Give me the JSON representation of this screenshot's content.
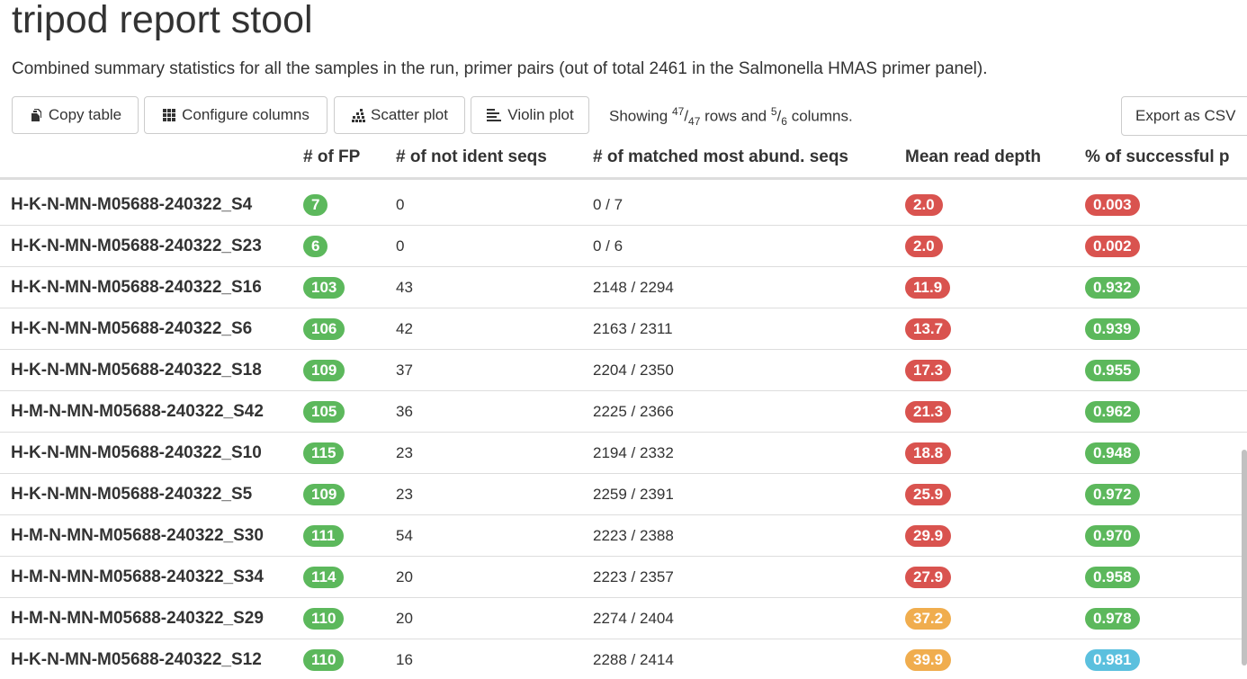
{
  "page": {
    "title": "tripod report stool",
    "subtitle": "Combined summary statistics for all the samples in the run, primer pairs (out of total 2461 in the Salmonella HMAS primer panel)."
  },
  "toolbar": {
    "copy_label": "Copy table",
    "configure_label": "Configure columns",
    "scatter_label": "Scatter plot",
    "violin_label": "Violin plot",
    "showing_prefix": "Showing",
    "rows_shown": "47",
    "rows_total": "47",
    "rows_word": "rows and",
    "cols_shown": "5",
    "cols_total": "6",
    "cols_word": "columns.",
    "export_label": "Export as CSV"
  },
  "table": {
    "headers": {
      "fp": "# of FP",
      "notident": "# of not ident seqs",
      "matched": "# of matched most abund. seqs",
      "depth": "Mean read depth",
      "success": "% of successful p"
    },
    "rows": [
      {
        "sample": "H-K-N-MN-M05688-240322_S4",
        "fp": "7",
        "notident": "0",
        "matched": "0 / 7",
        "depth": "2.0",
        "success": "0.003"
      },
      {
        "sample": "H-K-N-MN-M05688-240322_S23",
        "fp": "6",
        "notident": "0",
        "matched": "0 / 6",
        "depth": "2.0",
        "success": "0.002"
      },
      {
        "sample": "H-K-N-MN-M05688-240322_S16",
        "fp": "103",
        "notident": "43",
        "matched": "2148 / 2294",
        "depth": "11.9",
        "success": "0.932"
      },
      {
        "sample": "H-K-N-MN-M05688-240322_S6",
        "fp": "106",
        "notident": "42",
        "matched": "2163 / 2311",
        "depth": "13.7",
        "success": "0.939"
      },
      {
        "sample": "H-K-N-MN-M05688-240322_S18",
        "fp": "109",
        "notident": "37",
        "matched": "2204 / 2350",
        "depth": "17.3",
        "success": "0.955"
      },
      {
        "sample": "H-M-N-MN-M05688-240322_S42",
        "fp": "105",
        "notident": "36",
        "matched": "2225 / 2366",
        "depth": "21.3",
        "success": "0.962"
      },
      {
        "sample": "H-K-N-MN-M05688-240322_S10",
        "fp": "115",
        "notident": "23",
        "matched": "2194 / 2332",
        "depth": "18.8",
        "success": "0.948"
      },
      {
        "sample": "H-K-N-MN-M05688-240322_S5",
        "fp": "109",
        "notident": "23",
        "matched": "2259 / 2391",
        "depth": "25.9",
        "success": "0.972"
      },
      {
        "sample": "H-M-N-MN-M05688-240322_S30",
        "fp": "111",
        "notident": "54",
        "matched": "2223 / 2388",
        "depth": "29.9",
        "success": "0.970"
      },
      {
        "sample": "H-M-N-MN-M05688-240322_S34",
        "fp": "114",
        "notident": "20",
        "matched": "2223 / 2357",
        "depth": "27.9",
        "success": "0.958"
      },
      {
        "sample": "H-M-N-MN-M05688-240322_S29",
        "fp": "110",
        "notident": "20",
        "matched": "2274 / 2404",
        "depth": "37.2",
        "success": "0.978"
      },
      {
        "sample": "H-K-N-MN-M05688-240322_S12",
        "fp": "110",
        "notident": "16",
        "matched": "2288 / 2414",
        "depth": "39.9",
        "success": "0.981"
      }
    ]
  },
  "colors": {
    "green": "#5cb85c",
    "red": "#d9534f",
    "orange": "#f0ad4e",
    "blue": "#5bc0de"
  },
  "badge_colors": {
    "fp": [
      "green",
      "green",
      "green",
      "green",
      "green",
      "green",
      "green",
      "green",
      "green",
      "green",
      "green",
      "green"
    ],
    "depth": [
      "red",
      "red",
      "red",
      "red",
      "red",
      "red",
      "red",
      "red",
      "red",
      "red",
      "orange",
      "orange"
    ],
    "success": [
      "red",
      "red",
      "green",
      "green",
      "green",
      "green",
      "green",
      "green",
      "green",
      "green",
      "green",
      "blue"
    ]
  }
}
